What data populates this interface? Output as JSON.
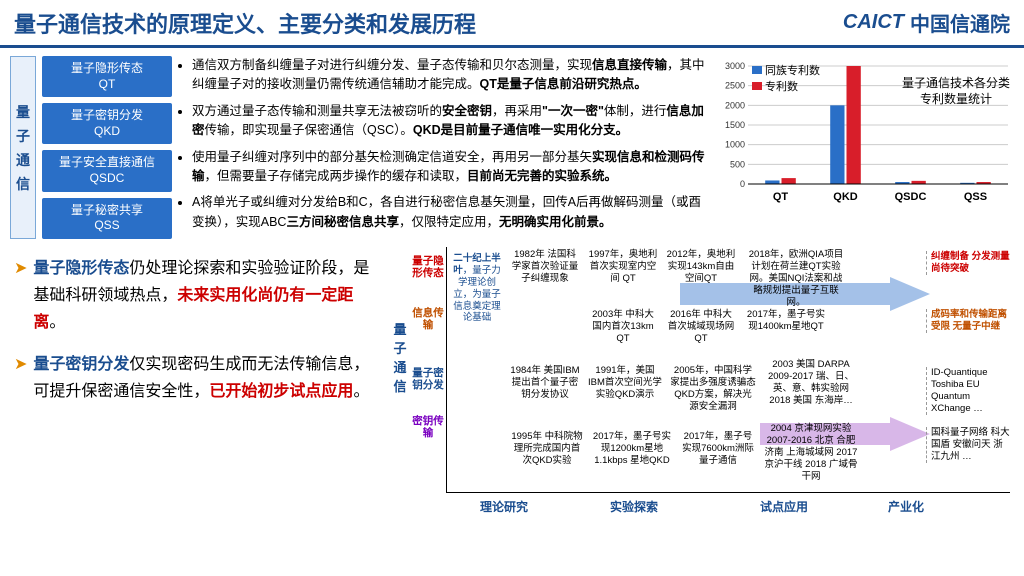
{
  "header": {
    "title": "量子通信技术的原理定义、主要分类和发展历程",
    "logo_badge": "CAICT",
    "logo_cn": "中国信通院"
  },
  "vlabel": [
    "量",
    "子",
    "通",
    "信"
  ],
  "boxes": [
    {
      "l1": "量子隐形传态",
      "l2": "QT"
    },
    {
      "l1": "量子密钥分发",
      "l2": "QKD"
    },
    {
      "l1": "量子安全直接通信",
      "l2": "QSDC"
    },
    {
      "l1": "量子秘密共享",
      "l2": "QSS"
    }
  ],
  "bullets": {
    "b1a": "通信双方制备纠缠量子对进行纠缠分发、量子态传输和贝尔态测量，实现",
    "b1b": "信息直接传输",
    "b1c": "，其中纠缠量子对的接收测量仍需传统通信辅助才能完成。",
    "b1d": "QT是量子信息前沿研究热点。",
    "b2a": "双方通过量子态传输和测量共享无法被窃听的",
    "b2b": "安全密钥",
    "b2c": "，再采用",
    "b2d": "\"一次一密\"",
    "b2e": "体制，进行",
    "b2f": "信息加密",
    "b2g": "传输，即实现量子保密通信（QSC）。",
    "b2h": "QKD是目前量子通信唯一实用化分支。",
    "b3a": "使用量子纠缠对序列中的部分基矢检测确定信道安全，再用另一部分基矢",
    "b3b": "实现信息和检测码传输",
    "b3c": "，但需要量子存储完成两步操作的缓存和读取，",
    "b3d": "目前尚无完善的实验系统。",
    "b4a": "A将单光子或纠缠对分发给B和C，各自进行秘密信息基矢测量，回传A后再做解码测量（或酉变换），实现ABC",
    "b4b": "三方间秘密信息共享",
    "b4c": "，仅限特定应用，",
    "b4d": "无明确实用化前景。"
  },
  "chart": {
    "type": "bar",
    "legend1": "同族专利数",
    "legend2": "专利数",
    "title_l1": "量子通信技术各分类",
    "title_l2": "专利数量统计",
    "categories": [
      "QT",
      "QKD",
      "QSDC",
      "QSS"
    ],
    "series1": [
      90,
      2000,
      50,
      30
    ],
    "series2": [
      150,
      3000,
      80,
      50
    ],
    "color1": "#2a6fc7",
    "color2": "#d81e2a",
    "ymax": 3000,
    "yticks": [
      0,
      500,
      1000,
      1500,
      2000,
      2500,
      3000
    ],
    "grid_color": "#cccccc",
    "bg": "#ffffff"
  },
  "callouts": {
    "c1a": "量子隐形传态",
    "c1b": "仍处理论探索和实验验证阶段，是基础科研领域热点，",
    "c1c": "未来实用化尚仍有一定距离",
    "c1d": "。",
    "c2a": "量子密钥分发",
    "c2b": "仅实现密码生成而无法传输信息，可提升保密通信安全性，",
    "c2c": "已开始初步试点应用",
    "c2d": "。"
  },
  "timeline": {
    "vlabel": [
      "量",
      "子",
      "通",
      "信"
    ],
    "side": {
      "r1": "量子隐形传态",
      "r2": "信息传输",
      "r3": "量子密钥分发",
      "r4": "密钥传输"
    },
    "col0": {
      "t": "二十纪上半叶",
      "d": "，量子力学理论创立，为量子信息奠定理论基础"
    },
    "cells": {
      "a1": "1982年 法国科学家首次验证量子纠缠现象",
      "a2": "1997年，奥地利首次实现室内空间 QT",
      "a3": "2012年，奥地利实现143km自由空间QT",
      "a4": "2018年，欧洲QIA项目计划在荷兰建QT实验网。美国NQI法案和战略规划提出量子互联网。",
      "b1": "2003年 中科大国内首次13km QT",
      "b2": "2016年 中科大首次城域现场网QT",
      "b3": "2017年，墨子号实现1400km星地QT",
      "c1": "1984年 美国IBM提出首个量子密钥分发协议",
      "c2": "1991年，美国IBM首次空间光学实验QKD演示",
      "c3": "2005年，中国科学家提出多强度诱骗态QKD方案，解决光源安全漏洞",
      "c4": "2003 美国 DARPA 2009-2017 瑞、日、英、意、韩实验网 2018 美国 东海岸…",
      "d1": "1995年 中科院物理所完成国内首次QKD实验",
      "d2": "2017年，墨子号实现1200km星地1.1kbps 星地QKD",
      "d3": "2017年，墨子号实现7600km洲际量子通信",
      "d4": "2004 京津现网实验 2007-2016 北京 合肥 济南 上海城域网 2017 京沪干线 2018 广域骨干网"
    },
    "phases": [
      "理论研究",
      "实验探索",
      "试点应用",
      "产业化"
    ],
    "right": {
      "r1": "纠缠制备 分发测量 尚待突破",
      "r2": "成码率和传输距离受限 无量子中继",
      "r3": "ID-Quantique Toshiba EU Quantum XChange …",
      "r4": "国科量子网络 科大国盾 安徽问天 浙江九州 …"
    },
    "arrow_color_top": "#5b8fd6",
    "arrow_color_bottom": "#b97dd6"
  }
}
